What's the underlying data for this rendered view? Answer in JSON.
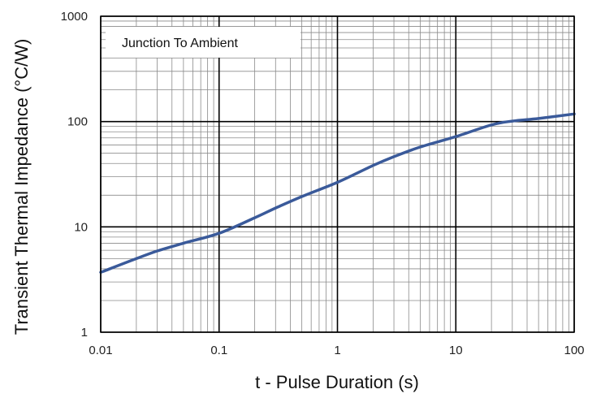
{
  "chart_data": {
    "type": "line",
    "title": "",
    "xlabel": "t - Pulse Duration (s)",
    "ylabel": "Transient Thermal Impedance (°C/W)",
    "x_scale": "log",
    "y_scale": "log",
    "xlim": [
      0.01,
      100
    ],
    "ylim": [
      1,
      1000
    ],
    "x_ticks": [
      0.01,
      0.1,
      1,
      10,
      100
    ],
    "x_tick_labels": [
      "0.01",
      "0.1",
      "1",
      "10",
      "100"
    ],
    "y_ticks": [
      1,
      10,
      100,
      1000
    ],
    "y_tick_labels": [
      "1",
      "10",
      "100",
      "1000"
    ],
    "grid": true,
    "annotation": "Junction To Ambient",
    "series_color": "#3a5a9a",
    "series": [
      {
        "x": [
          0.01,
          0.02,
          0.03,
          0.05,
          0.1,
          0.2,
          0.3,
          0.5,
          1,
          2,
          3,
          5,
          10,
          20,
          30,
          50,
          100
        ],
        "y": [
          3.7,
          5.0,
          5.9,
          7.0,
          8.7,
          12.2,
          15.1,
          19.4,
          26.5,
          38.3,
          46.4,
          57.3,
          72,
          93,
          101,
          107,
          118
        ]
      }
    ]
  }
}
